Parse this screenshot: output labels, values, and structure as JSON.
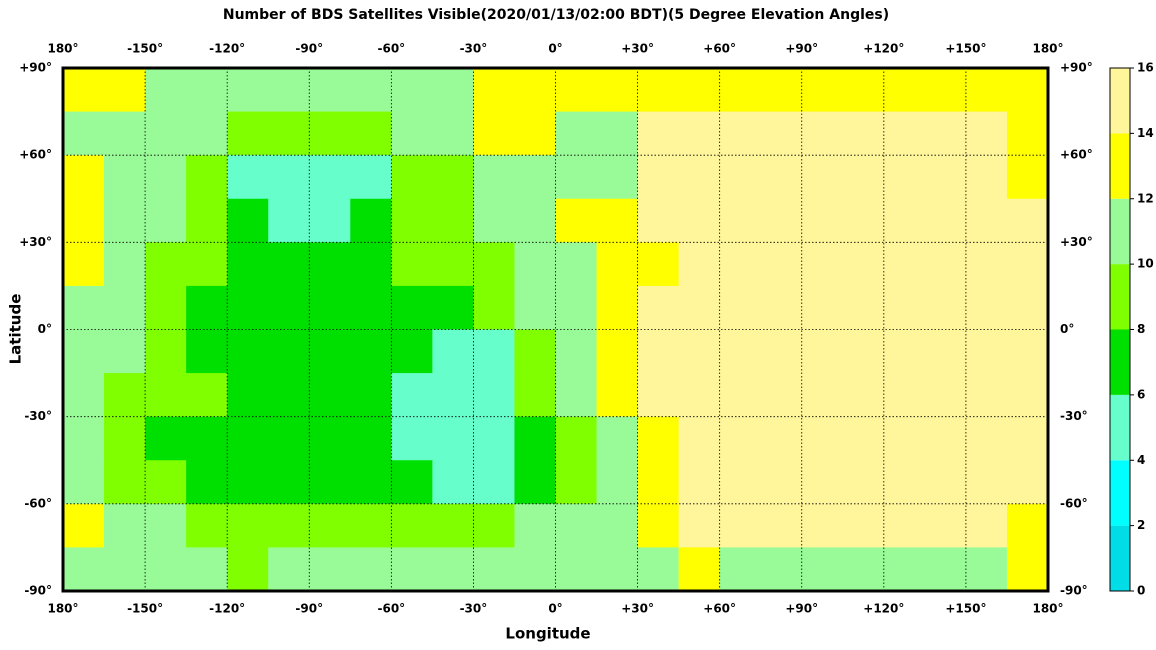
{
  "chart_data": {
    "type": "map",
    "title": "Number of BDS Satellites Visible(2020/01/13/02:00 BDT)(5 Degree Elevation Angles)",
    "x_label": "Longitude",
    "y_label": "Latitude",
    "xlim": [
      -180,
      180
    ],
    "ylim": [
      -90,
      90
    ],
    "xticks": [
      {
        "value": -180,
        "label": "180°"
      },
      {
        "value": -150,
        "label": "-150°"
      },
      {
        "value": -120,
        "label": "-120°"
      },
      {
        "value": -90,
        "label": "-90°"
      },
      {
        "value": -60,
        "label": "-60°"
      },
      {
        "value": -30,
        "label": "-30°"
      },
      {
        "value": 0,
        "label": "0°"
      },
      {
        "value": 30,
        "label": "+30°"
      },
      {
        "value": 60,
        "label": "+60°"
      },
      {
        "value": 90,
        "label": "+90°"
      },
      {
        "value": 120,
        "label": "+120°"
      },
      {
        "value": 150,
        "label": "+150°"
      },
      {
        "value": 180,
        "label": "180°"
      }
    ],
    "yticks": [
      {
        "value": 90,
        "label": "+90°"
      },
      {
        "value": 60,
        "label": "+60°"
      },
      {
        "value": 30,
        "label": "+30°"
      },
      {
        "value": 0,
        "label": "0°"
      },
      {
        "value": -30,
        "label": "-30°"
      },
      {
        "value": -60,
        "label": "-60°"
      },
      {
        "value": -90,
        "label": "-90°"
      }
    ],
    "grid": true,
    "values": [
      [
        13,
        13,
        11,
        11,
        11,
        11,
        11,
        11,
        11,
        11,
        13,
        13,
        13,
        13,
        13,
        13,
        13,
        13,
        13,
        13,
        13,
        13,
        13,
        13
      ],
      [
        11,
        11,
        11,
        11,
        9,
        9,
        9,
        9,
        11,
        11,
        13,
        13,
        11,
        11,
        15,
        15,
        15,
        15,
        15,
        15,
        15,
        15,
        15,
        13
      ],
      [
        13,
        11,
        11,
        9,
        5,
        5,
        5,
        5,
        9,
        9,
        11,
        11,
        11,
        11,
        15,
        15,
        15,
        15,
        15,
        15,
        15,
        15,
        15,
        13
      ],
      [
        13,
        11,
        11,
        9,
        7,
        5,
        5,
        7,
        9,
        9,
        11,
        11,
        13,
        13,
        15,
        15,
        15,
        15,
        15,
        15,
        15,
        15,
        15,
        15
      ],
      [
        13,
        11,
        9,
        9,
        7,
        7,
        7,
        7,
        9,
        9,
        9,
        11,
        11,
        13,
        13,
        15,
        15,
        15,
        15,
        15,
        15,
        15,
        15,
        15
      ],
      [
        11,
        11,
        9,
        7,
        7,
        7,
        7,
        7,
        7,
        7,
        9,
        11,
        11,
        13,
        15,
        15,
        15,
        15,
        15,
        15,
        15,
        15,
        15,
        15
      ],
      [
        11,
        11,
        9,
        7,
        7,
        7,
        7,
        7,
        7,
        5,
        5,
        9,
        11,
        13,
        15,
        15,
        15,
        15,
        15,
        15,
        15,
        15,
        15,
        15
      ],
      [
        11,
        9,
        9,
        9,
        7,
        7,
        7,
        7,
        5,
        5,
        5,
        9,
        11,
        13,
        15,
        15,
        15,
        15,
        15,
        15,
        15,
        15,
        15,
        15
      ],
      [
        11,
        9,
        7,
        7,
        7,
        7,
        7,
        7,
        5,
        5,
        5,
        7,
        9,
        11,
        13,
        15,
        15,
        15,
        15,
        15,
        15,
        15,
        15,
        15
      ],
      [
        11,
        9,
        9,
        7,
        7,
        7,
        7,
        7,
        7,
        5,
        5,
        7,
        9,
        11,
        13,
        15,
        15,
        15,
        15,
        15,
        15,
        15,
        15,
        15
      ],
      [
        13,
        11,
        11,
        9,
        9,
        9,
        9,
        9,
        9,
        9,
        9,
        11,
        11,
        11,
        13,
        15,
        15,
        15,
        15,
        15,
        15,
        15,
        15,
        13
      ],
      [
        11,
        11,
        11,
        11,
        9,
        11,
        11,
        11,
        11,
        11,
        11,
        11,
        11,
        11,
        11,
        13,
        11,
        11,
        11,
        11,
        11,
        11,
        11,
        13
      ]
    ],
    "colorbar": {
      "ticks": [
        0,
        2,
        4,
        6,
        8,
        10,
        12,
        14,
        16
      ],
      "colors": [
        "#00dde6",
        "#00ffff",
        "#66ffcc",
        "#00e000",
        "#80ff00",
        "#98fb98",
        "#ffff00",
        "#fff59a"
      ]
    }
  }
}
